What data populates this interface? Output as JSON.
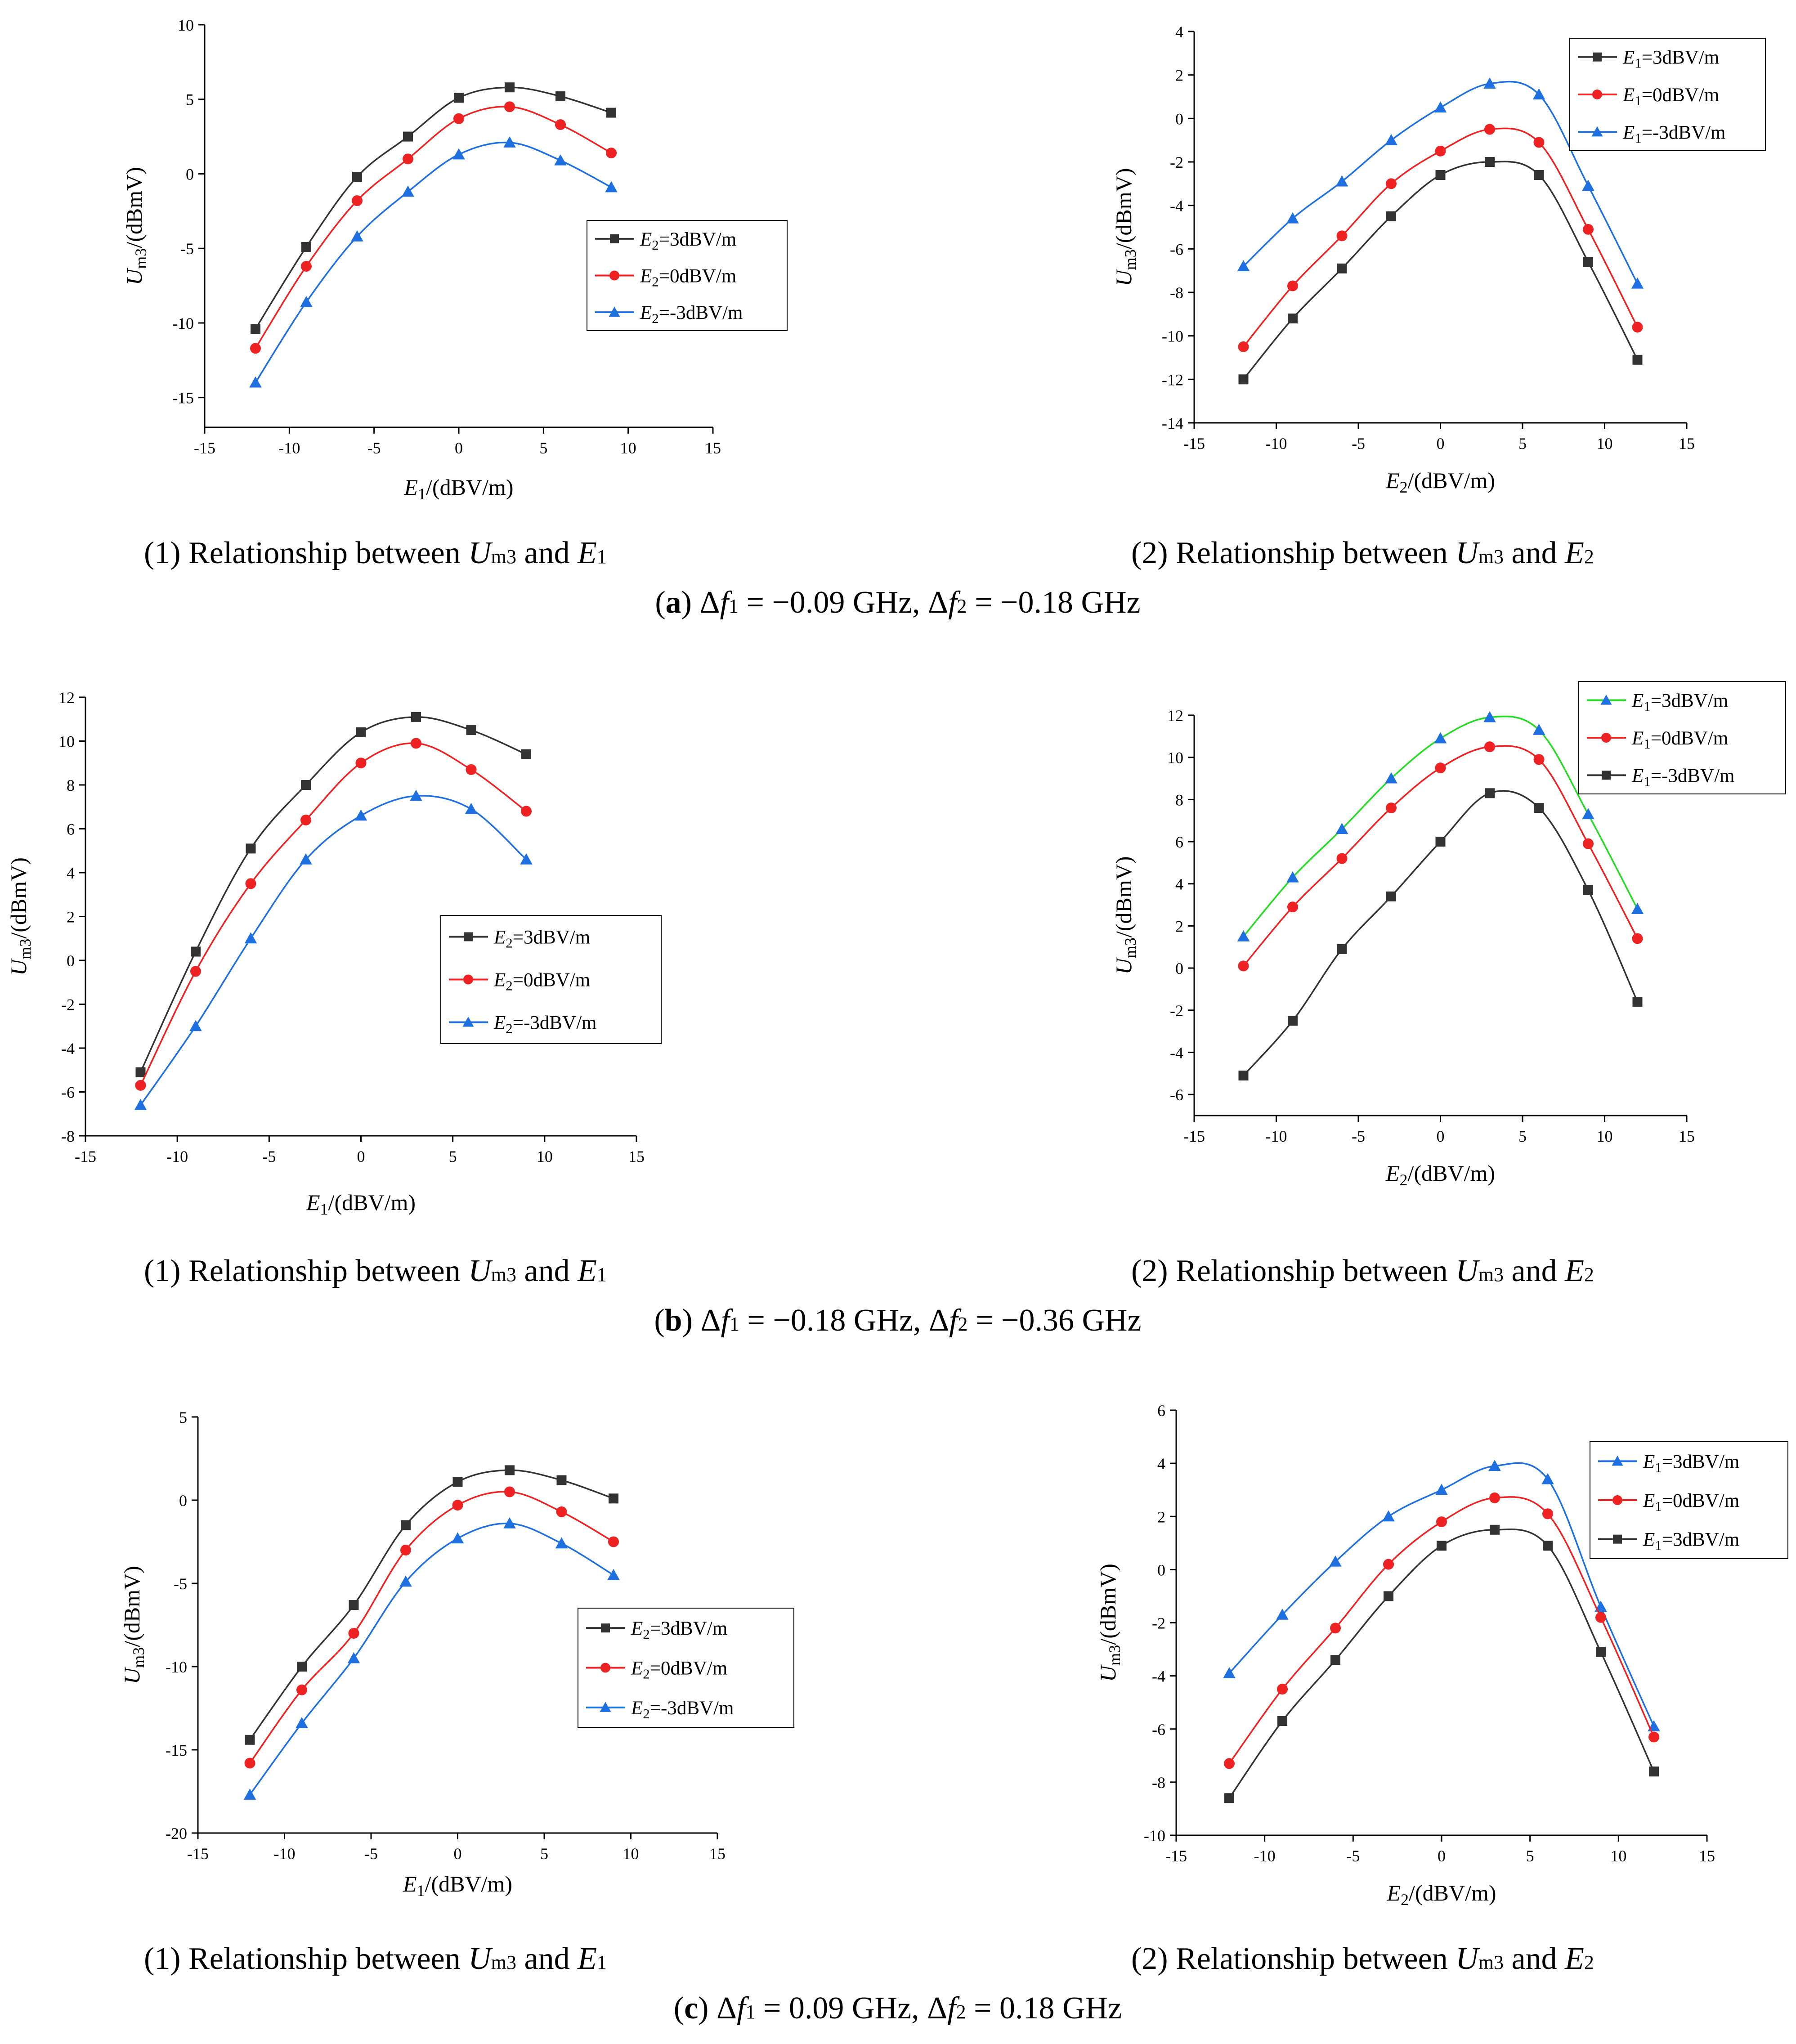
{
  "colors": {
    "black": "#333333",
    "red": "#ee2222",
    "blue": "#1e6fe0",
    "green": "#22dd22"
  },
  "captions": {
    "sub1_prefix": "(1) Relationship between ",
    "sub2_prefix": "(2) Relationship between ",
    "U": "U",
    "m3": "m3",
    "and": " and ",
    "E": "E",
    "one": "1",
    "two": "2",
    "row_a": {
      "letter": "a",
      "text": "Δf1 = −0.09 GHz, Δf2 = −0.18 GHz",
      "f1": "1",
      "v1": " = −0.09 GHz, Δ",
      "f2": "2",
      "v2": " = −0.18 GHz"
    },
    "row_b": {
      "letter": "b",
      "text": "Δf1 = −0.18 GHz, Δf2 = −0.36 GHz",
      "f1": "1",
      "v1": " = −0.18 GHz, Δ",
      "f2": "2",
      "v2": " = −0.36 GHz"
    },
    "row_c": {
      "letter": "c",
      "text": "Δf1 = 0.09 GHz, Δf2 = 0.18 GHz",
      "f1": "1",
      "v1": " = 0.09 GHz, Δ",
      "f2": "2",
      "v2": " = 0.18 GHz"
    }
  },
  "chart_data": [
    {
      "id": "a1",
      "type": "line",
      "xlabel": "E1/(dBV/m)",
      "ylabel": "Um3/(dBmV)",
      "xlim": [
        -15,
        15
      ],
      "ylim": [
        -17,
        10
      ],
      "xticks": [
        -15,
        -10,
        -5,
        0,
        5,
        10,
        15
      ],
      "yticks": [
        -15,
        -10,
        -5,
        0,
        5,
        10
      ],
      "legend_position": "middle-right",
      "series": [
        {
          "name": "E2=3dBV/m",
          "color": "black",
          "marker": "square",
          "x": [
            -12,
            -9,
            -6,
            -3,
            0,
            3,
            6,
            9
          ],
          "values": [
            -10.4,
            -4.9,
            -0.2,
            2.5,
            5.1,
            5.8,
            5.2,
            4.1
          ]
        },
        {
          "name": "E2=0dBV/m",
          "color": "red",
          "marker": "circle",
          "x": [
            -12,
            -9,
            -6,
            -3,
            0,
            3,
            6,
            9
          ],
          "values": [
            -11.7,
            -6.2,
            -1.8,
            1.0,
            3.7,
            4.5,
            3.3,
            1.4
          ]
        },
        {
          "name": "E2=-3dBV/m",
          "color": "blue",
          "marker": "triangle",
          "x": [
            -12,
            -9,
            -6,
            -3,
            0,
            3,
            6,
            9
          ],
          "values": [
            -14.0,
            -8.6,
            -4.2,
            -1.2,
            1.3,
            2.1,
            0.9,
            -0.9
          ]
        }
      ]
    },
    {
      "id": "a2",
      "type": "line",
      "xlabel": "E2/(dBV/m)",
      "ylabel": "Um3/(dBmV)",
      "xlim": [
        -15,
        15
      ],
      "ylim": [
        -14,
        4
      ],
      "xticks": [
        -15,
        -10,
        -5,
        0,
        5,
        10,
        15
      ],
      "yticks": [
        -14,
        -12,
        -10,
        -8,
        -6,
        -4,
        -2,
        0,
        2,
        4
      ],
      "legend_position": "top-right",
      "series": [
        {
          "name": "E1=3dBV/m",
          "color": "black",
          "marker": "square",
          "x": [
            -12,
            -9,
            -6,
            -3,
            0,
            3,
            6,
            9,
            12
          ],
          "values": [
            -12.0,
            -9.2,
            -6.9,
            -4.5,
            -2.6,
            -2.0,
            -2.6,
            -6.6,
            -11.1
          ]
        },
        {
          "name": "E1=0dBV/m",
          "color": "red",
          "marker": "circle",
          "x": [
            -12,
            -9,
            -6,
            -3,
            0,
            3,
            6,
            9,
            12
          ],
          "values": [
            -10.5,
            -7.7,
            -5.4,
            -3.0,
            -1.5,
            -0.5,
            -1.1,
            -5.1,
            -9.6
          ]
        },
        {
          "name": "E1=-3dBV/m",
          "color": "blue",
          "marker": "triangle",
          "x": [
            -12,
            -9,
            -6,
            -3,
            0,
            3,
            6,
            9,
            12
          ],
          "values": [
            -6.8,
            -4.6,
            -2.9,
            -1.0,
            0.5,
            1.6,
            1.1,
            -3.1,
            -7.6
          ]
        }
      ]
    },
    {
      "id": "b1",
      "type": "line",
      "xlabel": "E1/(dBV/m)",
      "ylabel": "Um3/(dBmV)",
      "xlim": [
        -15,
        15
      ],
      "ylim": [
        -8,
        12
      ],
      "xticks": [
        -15,
        -10,
        -5,
        0,
        5,
        10,
        15
      ],
      "yticks": [
        -8,
        -6,
        -4,
        -2,
        0,
        2,
        4,
        6,
        8,
        10,
        12
      ],
      "legend_position": "bottom-right",
      "series": [
        {
          "name": "E2=3dBV/m",
          "color": "black",
          "marker": "square",
          "x": [
            -12,
            -9,
            -6,
            -3,
            0,
            3,
            6,
            9
          ],
          "values": [
            -5.1,
            0.4,
            5.1,
            8.0,
            10.4,
            11.1,
            10.5,
            9.4
          ]
        },
        {
          "name": "E2=0dBV/m",
          "color": "red",
          "marker": "circle",
          "x": [
            -12,
            -9,
            -6,
            -3,
            0,
            3,
            6,
            9
          ],
          "values": [
            -5.7,
            -0.5,
            3.5,
            6.4,
            9.0,
            9.9,
            8.7,
            6.8
          ]
        },
        {
          "name": "E2=-3dBV/m",
          "color": "blue",
          "marker": "triangle",
          "x": [
            -12,
            -9,
            -6,
            -3,
            0,
            3,
            6,
            9
          ],
          "values": [
            -6.6,
            -3.0,
            1.0,
            4.6,
            6.6,
            7.5,
            6.9,
            4.6
          ]
        }
      ]
    },
    {
      "id": "b2",
      "type": "line",
      "xlabel": "E2/(dBV/m)",
      "ylabel": "Um3/(dBmV)",
      "xlim": [
        -15,
        15
      ],
      "ylim": [
        -7,
        12
      ],
      "xticks": [
        -15,
        -10,
        -5,
        0,
        5,
        10,
        15
      ],
      "yticks": [
        -6,
        -4,
        -2,
        0,
        2,
        4,
        6,
        8,
        10,
        12
      ],
      "legend_position": "top-right",
      "series": [
        {
          "name": "E1=3dBV/m",
          "color": "green",
          "marker": "triangle",
          "marker_color": "blue",
          "x": [
            -12,
            -9,
            -6,
            -3,
            0,
            3,
            6,
            9,
            12
          ],
          "values": [
            1.5,
            4.3,
            6.6,
            9.0,
            10.9,
            11.9,
            11.3,
            7.3,
            2.8
          ]
        },
        {
          "name": "E1=0dBV/m",
          "color": "red",
          "marker": "circle",
          "x": [
            -12,
            -9,
            -6,
            -3,
            0,
            3,
            6,
            9,
            12
          ],
          "values": [
            0.1,
            2.9,
            5.2,
            7.6,
            9.5,
            10.5,
            9.9,
            5.9,
            1.4
          ]
        },
        {
          "name": "E1=-3dBV/m",
          "color": "black",
          "marker": "square",
          "x": [
            -12,
            -9,
            -6,
            -3,
            0,
            3,
            6,
            9,
            12
          ],
          "values": [
            -5.1,
            -2.5,
            0.9,
            3.4,
            6.0,
            8.3,
            7.6,
            3.7,
            -1.6
          ]
        }
      ]
    },
    {
      "id": "c1",
      "type": "line",
      "xlabel": "E1/(dBV/m)",
      "ylabel": "Um3/(dBmV)",
      "xlim": [
        -15,
        15
      ],
      "ylim": [
        -20,
        5
      ],
      "xticks": [
        -15,
        -10,
        -5,
        0,
        5,
        10,
        15
      ],
      "yticks": [
        -20,
        -15,
        -10,
        -5,
        0,
        5
      ],
      "legend_position": "bottom-right",
      "series": [
        {
          "name": "E2=3dBV/m",
          "color": "black",
          "marker": "square",
          "x": [
            -12,
            -9,
            -6,
            -3,
            0,
            3,
            6,
            9
          ],
          "values": [
            -14.4,
            -10.0,
            -6.3,
            -1.5,
            1.1,
            1.8,
            1.2,
            0.1
          ]
        },
        {
          "name": "E2=0dBV/m",
          "color": "red",
          "marker": "circle",
          "x": [
            -12,
            -9,
            -6,
            -3,
            0,
            3,
            6,
            9
          ],
          "values": [
            -15.8,
            -11.4,
            -8.0,
            -3.0,
            -0.3,
            0.5,
            -0.7,
            -2.5
          ]
        },
        {
          "name": "E2=-3dBV/m",
          "color": "blue",
          "marker": "triangle",
          "x": [
            -12,
            -9,
            -6,
            -3,
            0,
            3,
            6,
            9
          ],
          "values": [
            -17.7,
            -13.4,
            -9.5,
            -4.9,
            -2.3,
            -1.4,
            -2.6,
            -4.5
          ]
        }
      ]
    },
    {
      "id": "c2",
      "type": "line",
      "xlabel": "E2/(dBV/m)",
      "ylabel": "Um3/(dBmV)",
      "xlim": [
        -15,
        15
      ],
      "ylim": [
        -10,
        6
      ],
      "xticks": [
        -15,
        -10,
        -5,
        0,
        5,
        10,
        15
      ],
      "yticks": [
        -10,
        -8,
        -6,
        -4,
        -2,
        0,
        2,
        4,
        6
      ],
      "legend_position": "top-right",
      "series": [
        {
          "name": "E1=3dBV/m",
          "color": "blue",
          "marker": "triangle",
          "x": [
            -12,
            -9,
            -6,
            -3,
            0,
            3,
            6,
            9,
            12
          ],
          "values": [
            -3.9,
            -1.7,
            0.3,
            2.0,
            3.0,
            3.9,
            3.4,
            -1.4,
            -5.9
          ]
        },
        {
          "name": "E1=0dBV/m",
          "color": "red",
          "marker": "circle",
          "x": [
            -12,
            -9,
            -6,
            -3,
            0,
            3,
            6,
            9,
            12
          ],
          "values": [
            -7.3,
            -4.5,
            -2.2,
            0.2,
            1.8,
            2.7,
            2.1,
            -1.8,
            -6.3
          ]
        },
        {
          "name": "E1=3dBV/m",
          "color": "black",
          "marker": "square",
          "x": [
            -12,
            -9,
            -6,
            -3,
            0,
            3,
            6,
            9,
            12
          ],
          "values": [
            -8.6,
            -5.7,
            -3.4,
            -1.0,
            0.9,
            1.5,
            0.9,
            -3.1,
            -7.6
          ]
        }
      ]
    }
  ]
}
